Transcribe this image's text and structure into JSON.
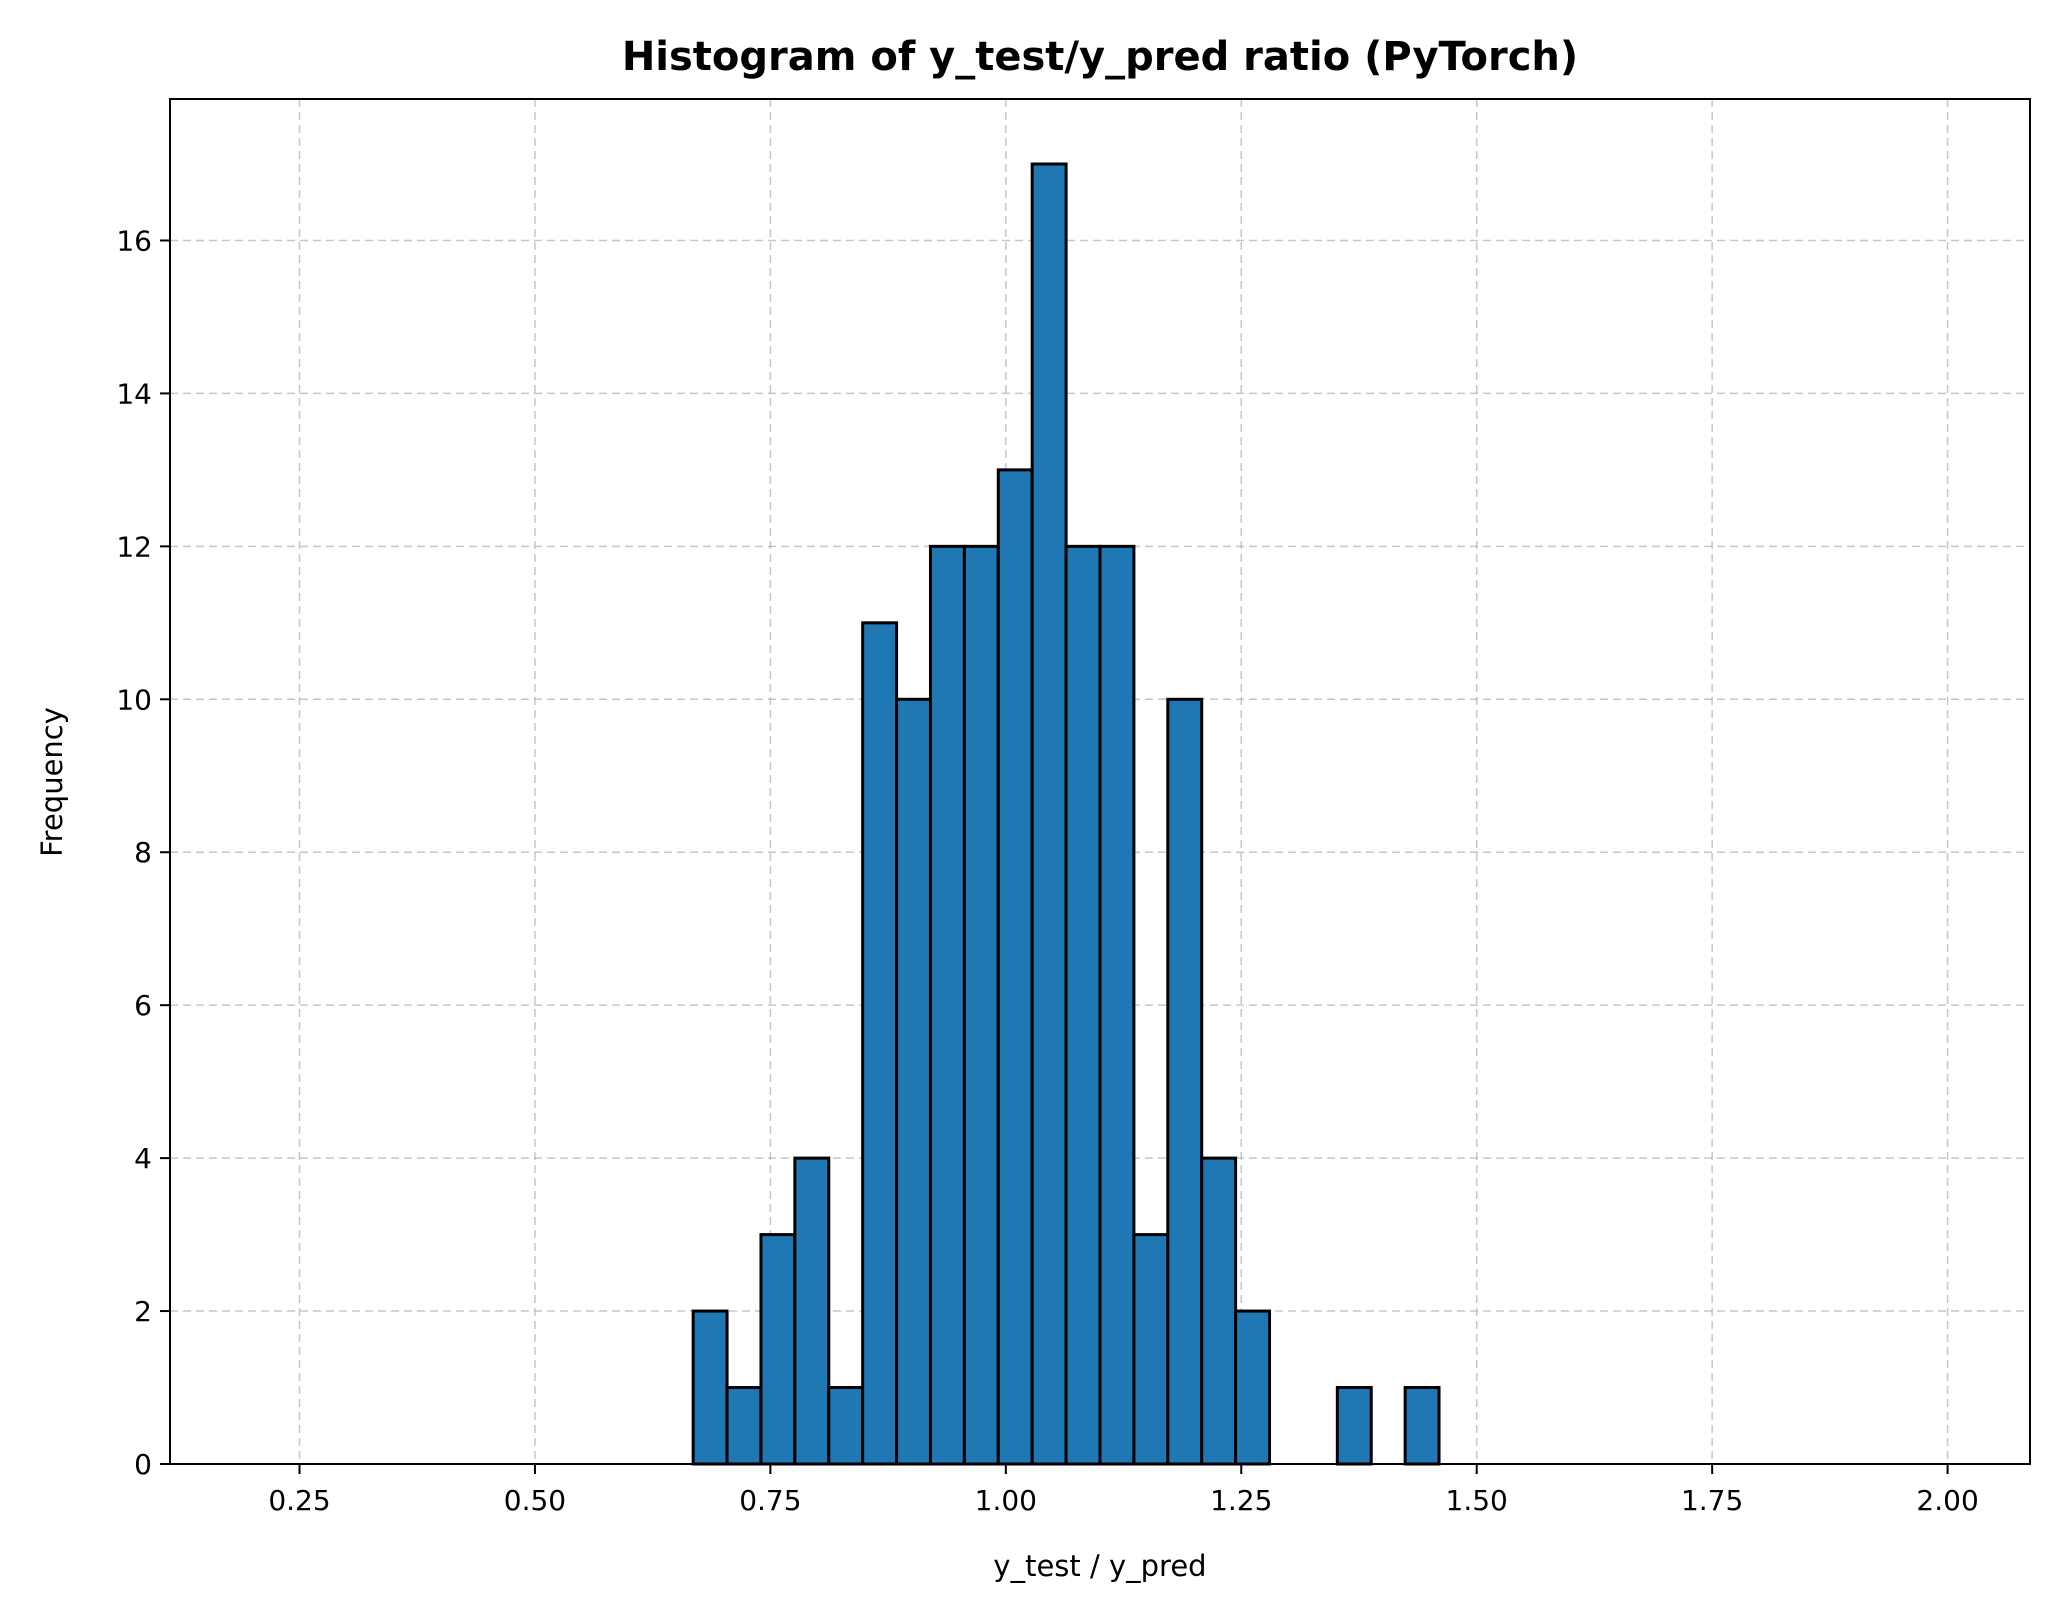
{
  "chart_data": {
    "type": "bar",
    "title": "Histogram of y_test/y_pred ratio (PyTorch)",
    "xlabel": "y_test / y_pred",
    "ylabel": "Frequency",
    "xlim": [
      0.1125,
      2.0875
    ],
    "ylim": [
      0,
      17.85
    ],
    "xticks": [
      0.25,
      0.5,
      0.75,
      1.0,
      1.25,
      1.5,
      1.75,
      2.0
    ],
    "xtick_labels": [
      "0.25",
      "0.50",
      "0.75",
      "1.00",
      "1.25",
      "1.50",
      "1.75",
      "2.00"
    ],
    "yticks": [
      0,
      2,
      4,
      6,
      8,
      10,
      12,
      14,
      16
    ],
    "ytick_labels": [
      "0",
      "2",
      "4",
      "6",
      "8",
      "10",
      "12",
      "14",
      "16"
    ],
    "grid": true,
    "bar_color": "#1f77b4",
    "edge_color": "#000000",
    "bins": {
      "range": [
        0.2,
        2.0
      ],
      "count": 50,
      "values": [
        0,
        0,
        0,
        0,
        0,
        0,
        0,
        0,
        0,
        0,
        0,
        0,
        0,
        2,
        1,
        3,
        4,
        1,
        11,
        10,
        12,
        12,
        13,
        17,
        12,
        12,
        3,
        10,
        4,
        2,
        0,
        0,
        1,
        0,
        1,
        0,
        0,
        0,
        0,
        0,
        0,
        0,
        0,
        0,
        0,
        0,
        0,
        0,
        0,
        0
      ]
    }
  }
}
